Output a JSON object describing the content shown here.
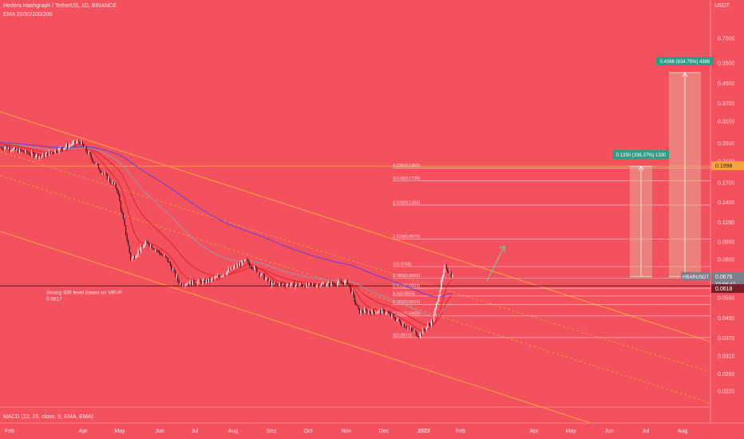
{
  "header": {
    "title": "Hedera Hashgraph / TetherUS, 1D, BINANCE",
    "indicator": "EMA 20/50/100/200",
    "unit": "USDT"
  },
  "macd_label": "MACD (12, 26, close, 9, EMA, EMA)",
  "colors": {
    "background": "#f4515f",
    "axis_text": "#ffe6e8",
    "channel": "#f6a53a",
    "ema_red": "#e0202e",
    "ema_grey": "#9a97a4",
    "ema_purple": "#6a3cd9",
    "candle": "#ffffff",
    "box": "#e6a88f",
    "badge": "#2f9d86",
    "arrow": "#6fd39b"
  },
  "chart_data": {
    "type": "candlestick",
    "title": "Hedera Hashgraph / TetherUS, 1D, BINANCE",
    "y_scale": "log",
    "y_axis_ticks": [
      0.7,
      0.55,
      0.45,
      0.37,
      0.31,
      0.25,
      0.21,
      0.17,
      0.14,
      0.115,
      0.095,
      0.08,
      0.0675,
      0.0618,
      0.055,
      0.045,
      0.037,
      0.031,
      0.026,
      0.022
    ],
    "y_axis_labels": [
      "0.7000",
      "0.5500",
      "0.4500",
      "0.3700",
      "0.3100",
      "0.2500",
      "0.2100",
      "0.1700",
      "0.1400",
      "0.1150",
      "0.0950",
      "0.0800",
      "0.0675",
      "0.0618",
      "0.0550",
      "0.0450",
      "0.0370",
      "0.0310",
      "0.0260",
      "0.0220"
    ],
    "x_axis_labels": [
      "Feb",
      "Apr",
      "May",
      "Jun",
      "Jul",
      "Aug",
      "Sep",
      "Oct",
      "Nov",
      "Dec",
      "2023",
      "Feb",
      "Apr",
      "May",
      "Jun",
      "Jul",
      "Aug"
    ],
    "price_path": [
      {
        "date": "2022-02-01",
        "price": 0.24
      },
      {
        "date": "2022-03-01",
        "price": 0.22
      },
      {
        "date": "2022-04-01",
        "price": 0.255
      },
      {
        "date": "2022-04-15",
        "price": 0.2
      },
      {
        "date": "2022-05-01",
        "price": 0.16
      },
      {
        "date": "2022-05-12",
        "price": 0.08
      },
      {
        "date": "2022-05-25",
        "price": 0.095
      },
      {
        "date": "2022-06-10",
        "price": 0.08
      },
      {
        "date": "2022-06-20",
        "price": 0.063
      },
      {
        "date": "2022-07-15",
        "price": 0.065
      },
      {
        "date": "2022-08-12",
        "price": 0.079
      },
      {
        "date": "2022-09-01",
        "price": 0.063
      },
      {
        "date": "2022-10-01",
        "price": 0.062
      },
      {
        "date": "2022-11-01",
        "price": 0.064
      },
      {
        "date": "2022-11-10",
        "price": 0.048
      },
      {
        "date": "2022-12-01",
        "price": 0.048
      },
      {
        "date": "2022-12-28",
        "price": 0.038
      },
      {
        "date": "2023-01-08",
        "price": 0.044
      },
      {
        "date": "2023-01-18",
        "price": 0.075
      },
      {
        "date": "2023-01-24",
        "price": 0.0675
      }
    ],
    "horizontal_levels": [
      {
        "label": "Strong S/R level based on VRVP",
        "value_label": "0.0617",
        "price": 0.0617
      },
      {
        "label": "",
        "value_label": "0.1998",
        "price": 0.1998
      }
    ],
    "fibonacci": [
      {
        "label": "4.236(0.1963)",
        "price": 0.1963
      },
      {
        "label": "3.618(0.1730)",
        "price": 0.173
      },
      {
        "label": "2.618(0.1364)",
        "price": 0.1364
      },
      {
        "label": "1.618(0.0979)",
        "price": 0.0979
      },
      {
        "label": "1(0.0746)",
        "price": 0.0746
      },
      {
        "label": "0.786(0.0666)",
        "price": 0.0666
      },
      {
        "label": "0.618(0.0603)",
        "price": 0.0603
      },
      {
        "label": "0.5(0.0559)",
        "price": 0.0559
      },
      {
        "label": "0.382(0.0514)",
        "price": 0.0514
      },
      {
        "label": "0.236(0.0460)",
        "price": 0.046
      },
      {
        "label": "0(0.0372)",
        "price": 0.0372
      }
    ],
    "targets": [
      {
        "label": "0.1330 (196.37%) 1330",
        "from": 0.0675,
        "to": 0.1998
      },
      {
        "label": "0.4366 (634.75%) 4366",
        "from": 0.0675,
        "to": 0.5
      }
    ],
    "price_tag": {
      "symbol": "HBARUSDT",
      "price": "0.0675",
      "timer": "10:56:47"
    },
    "support_tag": "0.0618"
  }
}
